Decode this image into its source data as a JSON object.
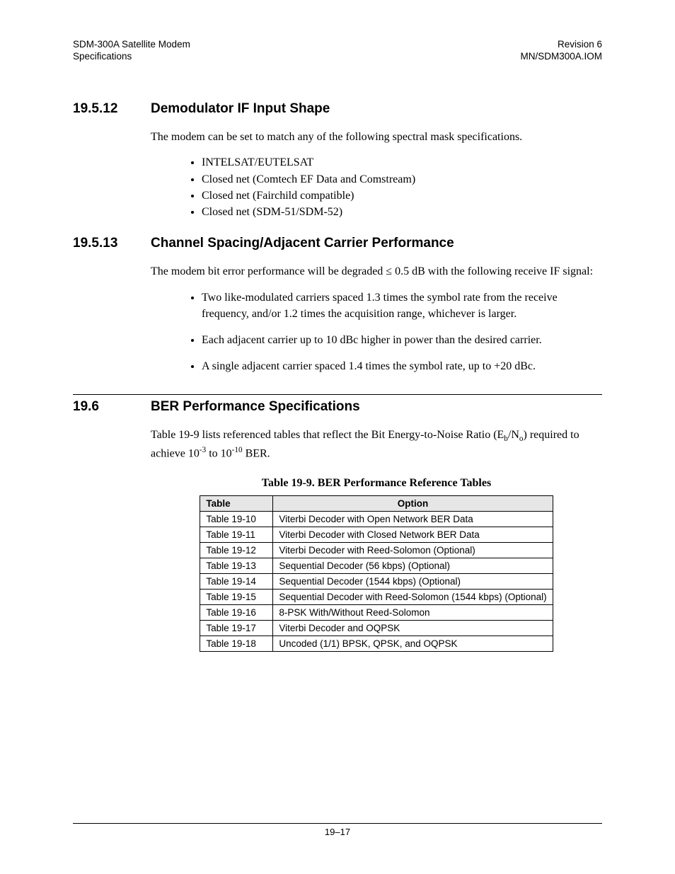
{
  "header": {
    "left1": "SDM-300A Satellite Modem",
    "left2": "Specifications",
    "right1": "Revision 6",
    "right2": "MN/SDM300A.IOM"
  },
  "sections": {
    "s1": {
      "num": "19.5.12",
      "title": "Demodulator IF Input Shape"
    },
    "s1_para": "The modem can be set to match any of the following spectral mask specifications.",
    "s1_bullets": [
      "INTELSAT/EUTELSAT",
      "Closed net (Comtech EF Data and Comstream)",
      "Closed net (Fairchild compatible)",
      "Closed net (SDM-51/SDM-52)"
    ],
    "s2": {
      "num": "19.5.13",
      "title": "Channel Spacing/Adjacent Carrier Performance"
    },
    "s2_para": "The modem bit error performance will be degraded ≤ 0.5 dB with the following receive IF signal:",
    "s2_bullets": [
      "Two like-modulated carriers spaced 1.3 times the symbol rate from the receive frequency, and/or 1.2 times the acquisition range, whichever is larger.",
      "Each adjacent carrier up to 10 dBc higher in power than the desired carrier.",
      "A single adjacent carrier spaced 1.4 times the symbol rate, up to +20 dBc."
    ],
    "s3": {
      "num": "19.6",
      "title": "BER Performance Specifications"
    }
  },
  "table": {
    "caption": "Table 19-9.  BER Performance Reference Tables",
    "col1": "Table",
    "col2": "Option",
    "rows": [
      [
        "Table 19-10",
        "Viterbi Decoder with Open Network BER Data"
      ],
      [
        "Table 19-11",
        "Viterbi Decoder with Closed Network BER Data"
      ],
      [
        "Table 19-12",
        "Viterbi Decoder with Reed-Solomon (Optional)"
      ],
      [
        "Table 19-13",
        "Sequential Decoder (56 kbps) (Optional)"
      ],
      [
        "Table 19-14",
        "Sequential Decoder (1544 kbps) (Optional)"
      ],
      [
        "Table 19-15",
        "Sequential Decoder with Reed-Solomon (1544 kbps) (Optional)"
      ],
      [
        "Table 19-16",
        "8-PSK With/Without Reed-Solomon"
      ],
      [
        "Table 19-17",
        "Viterbi Decoder and OQPSK"
      ],
      [
        "Table 19-18",
        "Uncoded (1/1) BPSK, QPSK, and OQPSK"
      ]
    ]
  },
  "footer": "19–17"
}
